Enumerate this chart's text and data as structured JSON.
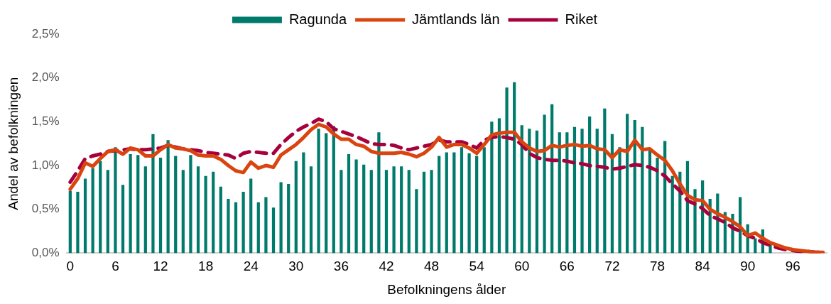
{
  "chart_data": {
    "type": "bar",
    "xlabel": "Befolkningens ålder",
    "ylabel": "Andel av befolkningen",
    "legend": "top",
    "grid": false,
    "marker": "none",
    "categories": [
      "0",
      null,
      null,
      null,
      null,
      null,
      "6",
      null,
      null,
      null,
      null,
      null,
      "12",
      null,
      null,
      null,
      null,
      null,
      "18",
      null,
      null,
      null,
      null,
      null,
      "24",
      null,
      null,
      null,
      null,
      null,
      "30",
      null,
      null,
      null,
      null,
      null,
      "36",
      null,
      null,
      null,
      null,
      null,
      "42",
      null,
      null,
      null,
      null,
      null,
      "48",
      null,
      null,
      null,
      null,
      null,
      "54",
      null,
      null,
      null,
      null,
      null,
      "60",
      null,
      null,
      null,
      null,
      null,
      "66",
      null,
      null,
      null,
      null,
      null,
      "72",
      null,
      null,
      null,
      null,
      null,
      "78",
      null,
      null,
      null,
      null,
      null,
      "84",
      null,
      null,
      null,
      null,
      null,
      "90",
      null,
      null,
      null,
      null,
      null,
      "96",
      null,
      null,
      null,
      null
    ],
    "ylim": [
      0,
      2.5
    ],
    "yticks": [
      {
        "value": 0,
        "label": "0,0%"
      },
      {
        "value": 0.5,
        "label": "0,5%"
      },
      {
        "value": 1,
        "label": "1,0%"
      },
      {
        "value": 1.5,
        "label": "1,5%"
      },
      {
        "value": 2,
        "label": "2,0%"
      },
      {
        "value": 2.5,
        "label": "2,5%"
      }
    ],
    "series": [
      {
        "name": "Ragunda",
        "type": "bar",
        "color": "#007b6b",
        "values": [
          0.71,
          0.7,
          0.85,
          0.97,
          1.05,
          0.95,
          1.21,
          0.78,
          1.13,
          1.12,
          0.99,
          1.36,
          1.09,
          1.29,
          1.11,
          0.95,
          1.12,
          0.99,
          0.88,
          0.93,
          0.76,
          0.62,
          0.58,
          0.7,
          0.85,
          0.58,
          0.64,
          0.52,
          0.81,
          0.79,
          1.05,
          1.15,
          0.99,
          1.42,
          1.37,
          1.45,
          0.95,
          1.13,
          1.07,
          1.01,
          0.95,
          1.38,
          0.95,
          0.99,
          0.99,
          0.95,
          0.73,
          0.93,
          0.95,
          1.11,
          1.15,
          1.15,
          1.21,
          1.14,
          1.11,
          1.21,
          1.5,
          1.54,
          1.89,
          1.95,
          1.46,
          1.42,
          1.4,
          1.58,
          1.7,
          1.38,
          1.38,
          1.44,
          1.42,
          1.56,
          1.42,
          1.65,
          1.36,
          1.21,
          1.59,
          1.52,
          1.44,
          1.17,
          1.09,
          1.28,
          0.88,
          0.93,
          1.05,
          0.73,
          0.83,
          0.62,
          0.68,
          0.47,
          0.45,
          0.64,
          0.33,
          0.17,
          0.27,
          0.11,
          null,
          null,
          null,
          null,
          null,
          null,
          null
        ]
      },
      {
        "name": "Jämtlands län",
        "type": "line",
        "color": "#d9440f",
        "line_style": "solid",
        "values": [
          0.73,
          0.85,
          1.03,
          0.99,
          1.08,
          1.16,
          1.18,
          1.13,
          1.2,
          1.18,
          1.11,
          1.11,
          1.18,
          1.24,
          1.2,
          1.19,
          1.17,
          1.12,
          1.11,
          1.11,
          1.07,
          1.0,
          0.94,
          0.92,
          1.04,
          0.97,
          1.0,
          0.98,
          1.12,
          1.18,
          1.24,
          1.32,
          1.41,
          1.47,
          1.44,
          1.36,
          1.3,
          1.3,
          1.24,
          1.22,
          1.16,
          1.14,
          1.14,
          1.14,
          1.15,
          1.13,
          1.1,
          1.14,
          1.21,
          1.32,
          1.21,
          1.24,
          1.24,
          1.2,
          1.14,
          1.24,
          1.35,
          1.37,
          1.38,
          1.38,
          1.27,
          1.2,
          1.16,
          1.17,
          1.23,
          1.21,
          1.23,
          1.24,
          1.22,
          1.23,
          1.19,
          1.18,
          1.09,
          1.18,
          1.16,
          1.29,
          1.18,
          1.19,
          1.12,
          1.06,
          0.94,
          0.79,
          0.66,
          0.61,
          0.6,
          0.5,
          0.45,
          0.41,
          0.36,
          0.3,
          0.2,
          0.23,
          0.17,
          0.12,
          0.09,
          0.06,
          0.04,
          0.03,
          0.02,
          0.01,
          0.01
        ]
      },
      {
        "name": "Riket",
        "type": "line",
        "color": "#a6003d",
        "line_style": "dashed",
        "values": [
          0.81,
          0.94,
          1.08,
          1.11,
          1.13,
          1.16,
          1.17,
          1.18,
          1.19,
          1.18,
          1.18,
          1.19,
          1.2,
          1.23,
          1.21,
          1.19,
          1.18,
          1.17,
          1.15,
          1.14,
          1.13,
          1.12,
          1.08,
          1.14,
          1.16,
          1.15,
          1.14,
          1.14,
          1.24,
          1.32,
          1.39,
          1.44,
          1.48,
          1.53,
          1.5,
          1.42,
          1.39,
          1.36,
          1.33,
          1.29,
          1.25,
          1.24,
          1.24,
          1.23,
          1.2,
          1.18,
          1.2,
          1.22,
          1.24,
          1.29,
          1.27,
          1.27,
          1.27,
          1.24,
          1.2,
          1.29,
          1.32,
          1.33,
          1.32,
          1.3,
          1.24,
          1.14,
          1.09,
          1.07,
          1.06,
          1.06,
          1.05,
          1.03,
          1.02,
          1.0,
          0.99,
          0.98,
          0.96,
          0.97,
          0.99,
          1.01,
          1.0,
          0.98,
          0.94,
          0.88,
          0.79,
          0.71,
          0.6,
          0.56,
          0.51,
          0.43,
          0.39,
          0.35,
          0.29,
          0.25,
          0.2,
          0.17,
          0.12,
          0.09,
          0.06,
          0.04,
          0.03,
          0.02,
          0.02,
          0.01,
          0.01
        ]
      }
    ]
  }
}
